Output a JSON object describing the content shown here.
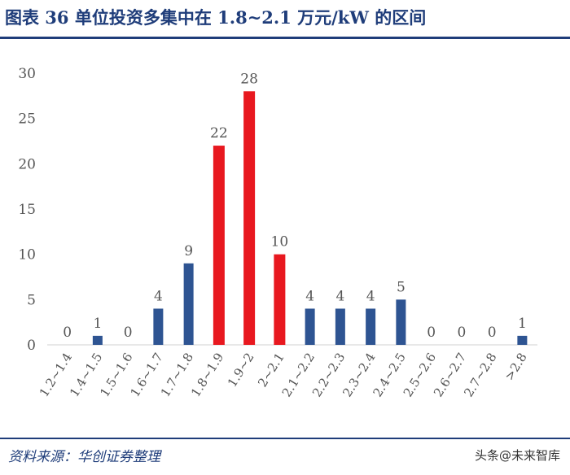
{
  "title": "图表 36    单位投资多集中在 1.8~2.1 万元/kW 的区间",
  "source": "资料来源：华创证券整理",
  "watermark": "头条@未来智库",
  "colors": {
    "normal": "#2e5492",
    "highlight": "#e8181f",
    "accent": "#1f3d7a"
  },
  "chart_data": {
    "type": "bar",
    "categories": [
      "1.2~1.4",
      "1.4~1.5",
      "1.5~1.6",
      "1.6~1.7",
      "1.7~1.8",
      "1.8~1.9",
      "1.9~2",
      "2~2.1",
      "2.1~2.2",
      "2.2~2.3",
      "2.3~2.4",
      "2.4~2.5",
      "2.5~2.6",
      "2.6~2.7",
      "2.7~2.8",
      ">2.8"
    ],
    "values": [
      0,
      1,
      0,
      4,
      9,
      22,
      28,
      10,
      4,
      4,
      4,
      5,
      0,
      0,
      0,
      1
    ],
    "highlight": [
      false,
      false,
      false,
      false,
      false,
      true,
      true,
      true,
      false,
      false,
      false,
      false,
      false,
      false,
      false,
      false
    ],
    "ylim": [
      0,
      30
    ],
    "yticks": [
      0,
      5,
      10,
      15,
      20,
      25,
      30
    ],
    "grid": false,
    "data_labels": true
  }
}
